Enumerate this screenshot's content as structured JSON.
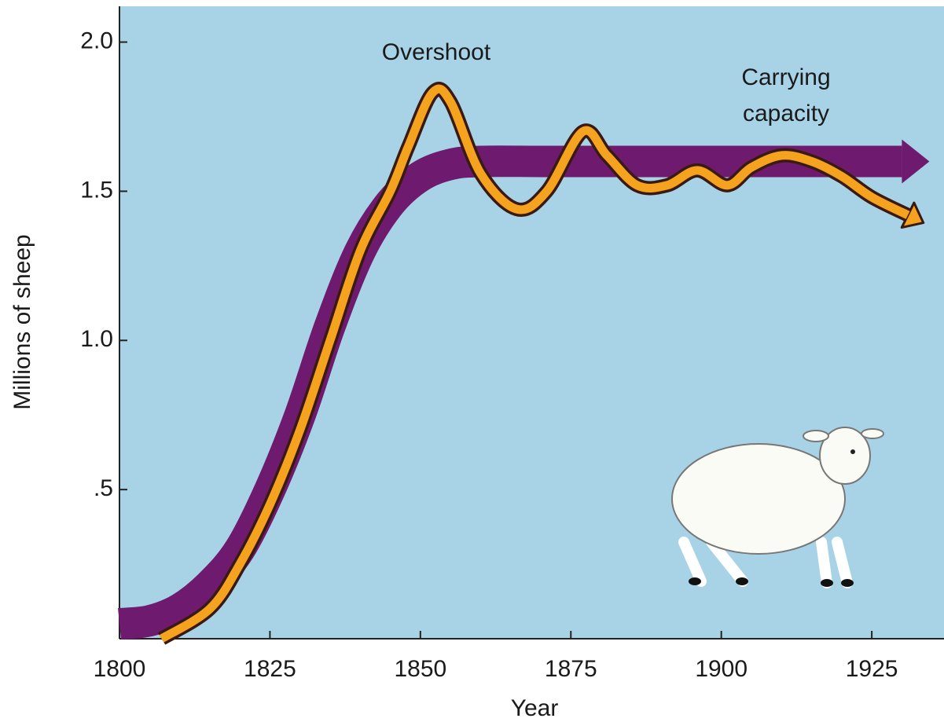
{
  "chart_data": {
    "type": "line",
    "xlabel": "Year",
    "ylabel": "Millions of sheep",
    "annotations": [
      "Overshoot",
      "Carrying capacity"
    ],
    "series": [
      {
        "color": "#6e1a6e",
        "x": [
          1800,
          1805,
          1810,
          1815,
          1820,
          1825,
          1830,
          1835,
          1840,
          1845,
          1850,
          1855,
          1860,
          1870,
          1880,
          1890,
          1900,
          1910,
          1920,
          1930
        ],
        "values": [
          0.05,
          0.06,
          0.1,
          0.18,
          0.3,
          0.5,
          0.75,
          1.05,
          1.3,
          1.46,
          1.55,
          1.59,
          1.6,
          1.6,
          1.6,
          1.6,
          1.6,
          1.6,
          1.6,
          1.6
        ]
      },
      {
        "color": "#f5a21f",
        "x": [
          1807,
          1815,
          1820,
          1825,
          1830,
          1835,
          1840,
          1845,
          1848,
          1852,
          1855,
          1860,
          1866,
          1871,
          1877,
          1881,
          1886,
          1891,
          1896,
          1901,
          1905,
          1910,
          1915,
          1920,
          1925,
          1931
        ],
        "values": [
          0,
          0.1,
          0.25,
          0.45,
          0.7,
          1.0,
          1.3,
          1.5,
          1.65,
          1.83,
          1.8,
          1.56,
          1.44,
          1.5,
          1.7,
          1.62,
          1.52,
          1.52,
          1.57,
          1.52,
          1.58,
          1.62,
          1.6,
          1.55,
          1.48,
          1.42
        ]
      }
    ],
    "xlim": [
      1800,
      1937
    ],
    "ylim": [
      0,
      2.12
    ],
    "xticks": [
      1800,
      1825,
      1850,
      1875,
      1900,
      1925
    ],
    "yticks": [
      {
        "value": 0.5,
        "label": ".5"
      },
      {
        "value": 1,
        "label": "1.0"
      },
      1.5,
      {
        "value": 2,
        "label": "2.0"
      }
    ],
    "background": "#a8d3e6"
  }
}
